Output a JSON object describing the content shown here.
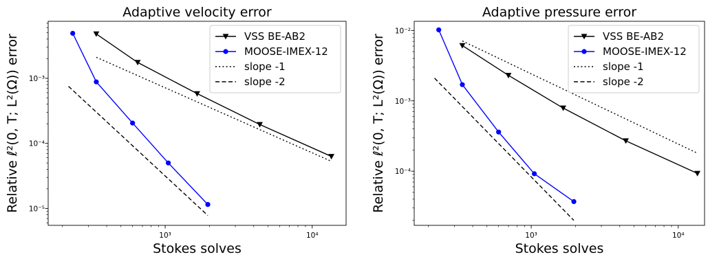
{
  "chart_data": [
    {
      "type": "line",
      "title": "Adaptive velocity error",
      "xlabel": "Stokes solves",
      "ylabel": "Relative ℓ²(0, T; L²(Ω)) error",
      "xscale": "log",
      "yscale": "log",
      "xlim": [
        160,
        17000
      ],
      "ylim": [
        5.5e-06,
        0.0075
      ],
      "xticks": [
        1000,
        10000
      ],
      "xtick_labels": [
        "10³",
        "10⁴"
      ],
      "yticks": [
        1e-05,
        0.0001,
        0.001
      ],
      "ytick_labels": [
        "10⁻⁵",
        "10⁻⁴",
        "10⁻³"
      ],
      "legend_position": "top-right",
      "series": [
        {
          "name": "VSS BE-AB2",
          "color": "#000000",
          "marker": "triangle-down",
          "linestyle": "solid",
          "x": [
            340,
            650,
            1650,
            4400,
            13500
          ],
          "y": [
            0.0048,
            0.00175,
            0.00058,
            0.000195,
            6.3e-05
          ]
        },
        {
          "name": "MOOSE-IMEX-12",
          "color": "#0000ff",
          "marker": "circle",
          "linestyle": "solid",
          "x": [
            235,
            340,
            600,
            1050,
            1950
          ],
          "y": [
            0.0049,
            0.00088,
            0.000205,
            5e-05,
            1.15e-05
          ]
        },
        {
          "name": "slope -1",
          "color": "#000000",
          "marker": "none",
          "linestyle": "dotted",
          "x": [
            340,
            13500
          ],
          "y": [
            0.0021,
            5.3e-05
          ]
        },
        {
          "name": "slope -2",
          "color": "#000000",
          "marker": "none",
          "linestyle": "dashed",
          "x": [
            220,
            1950
          ],
          "y": [
            0.00075,
            7.8e-06
          ]
        }
      ]
    },
    {
      "type": "line",
      "title": "Adaptive pressure error",
      "xlabel": "Stokes solves",
      "ylabel": "Relative ℓ²(0, T; L²(Ω)) error",
      "xscale": "log",
      "yscale": "log",
      "xlim": [
        160,
        17000
      ],
      "ylim": [
        1.7e-05,
        0.0135
      ],
      "xticks": [
        1000,
        10000
      ],
      "xtick_labels": [
        "10³",
        "10⁴"
      ],
      "yticks": [
        0.0001,
        0.001,
        0.01
      ],
      "ytick_labels": [
        "10⁻⁴",
        "10⁻³",
        "10⁻²"
      ],
      "legend_position": "top-right",
      "series": [
        {
          "name": "VSS BE-AB2",
          "color": "#000000",
          "marker": "triangle-down",
          "linestyle": "solid",
          "x": [
            340,
            700,
            1650,
            4400,
            13500
          ],
          "y": [
            0.0061,
            0.0023,
            0.00079,
            0.00027,
            9.3e-05
          ]
        },
        {
          "name": "MOOSE-IMEX-12",
          "color": "#0000ff",
          "marker": "circle",
          "linestyle": "solid",
          "x": [
            235,
            340,
            600,
            1050,
            1950
          ],
          "y": [
            0.0102,
            0.0017,
            0.00036,
            9.2e-05,
            3.7e-05
          ]
        },
        {
          "name": "slope -1",
          "color": "#000000",
          "marker": "none",
          "linestyle": "dotted",
          "x": [
            340,
            13500
          ],
          "y": [
            0.0071,
            0.00018
          ]
        },
        {
          "name": "slope -2",
          "color": "#000000",
          "marker": "none",
          "linestyle": "dashed",
          "x": [
            220,
            1950
          ],
          "y": [
            0.0021,
            2e-05
          ]
        }
      ]
    }
  ]
}
